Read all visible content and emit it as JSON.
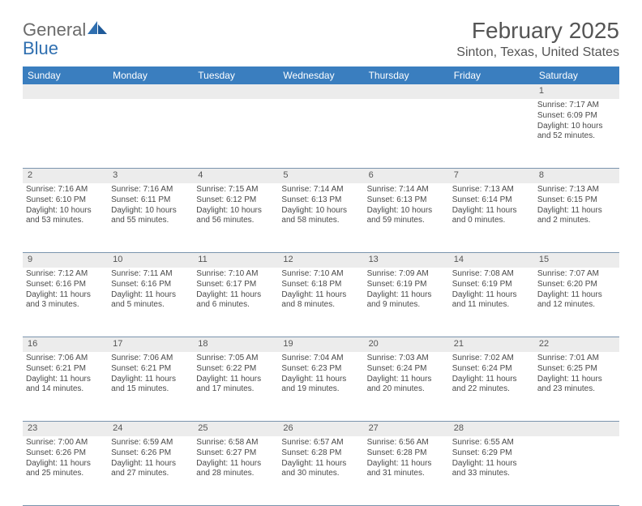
{
  "brand": {
    "word1": "General",
    "word2": "Blue"
  },
  "title": "February 2025",
  "location": "Sinton, Texas, United States",
  "colors": {
    "header_bg": "#3a7ebf",
    "header_text": "#ffffff",
    "daynum_bg": "#ececec",
    "rule": "#7a94ad",
    "text": "#4a4a4a"
  },
  "table": {
    "columns": [
      "Sunday",
      "Monday",
      "Tuesday",
      "Wednesday",
      "Thursday",
      "Friday",
      "Saturday"
    ],
    "weeks": [
      [
        null,
        null,
        null,
        null,
        null,
        null,
        {
          "n": "1",
          "sunrise": "Sunrise: 7:17 AM",
          "sunset": "Sunset: 6:09 PM",
          "daylight": "Daylight: 10 hours and 52 minutes."
        }
      ],
      [
        {
          "n": "2",
          "sunrise": "Sunrise: 7:16 AM",
          "sunset": "Sunset: 6:10 PM",
          "daylight": "Daylight: 10 hours and 53 minutes."
        },
        {
          "n": "3",
          "sunrise": "Sunrise: 7:16 AM",
          "sunset": "Sunset: 6:11 PM",
          "daylight": "Daylight: 10 hours and 55 minutes."
        },
        {
          "n": "4",
          "sunrise": "Sunrise: 7:15 AM",
          "sunset": "Sunset: 6:12 PM",
          "daylight": "Daylight: 10 hours and 56 minutes."
        },
        {
          "n": "5",
          "sunrise": "Sunrise: 7:14 AM",
          "sunset": "Sunset: 6:13 PM",
          "daylight": "Daylight: 10 hours and 58 minutes."
        },
        {
          "n": "6",
          "sunrise": "Sunrise: 7:14 AM",
          "sunset": "Sunset: 6:13 PM",
          "daylight": "Daylight: 10 hours and 59 minutes."
        },
        {
          "n": "7",
          "sunrise": "Sunrise: 7:13 AM",
          "sunset": "Sunset: 6:14 PM",
          "daylight": "Daylight: 11 hours and 0 minutes."
        },
        {
          "n": "8",
          "sunrise": "Sunrise: 7:13 AM",
          "sunset": "Sunset: 6:15 PM",
          "daylight": "Daylight: 11 hours and 2 minutes."
        }
      ],
      [
        {
          "n": "9",
          "sunrise": "Sunrise: 7:12 AM",
          "sunset": "Sunset: 6:16 PM",
          "daylight": "Daylight: 11 hours and 3 minutes."
        },
        {
          "n": "10",
          "sunrise": "Sunrise: 7:11 AM",
          "sunset": "Sunset: 6:16 PM",
          "daylight": "Daylight: 11 hours and 5 minutes."
        },
        {
          "n": "11",
          "sunrise": "Sunrise: 7:10 AM",
          "sunset": "Sunset: 6:17 PM",
          "daylight": "Daylight: 11 hours and 6 minutes."
        },
        {
          "n": "12",
          "sunrise": "Sunrise: 7:10 AM",
          "sunset": "Sunset: 6:18 PM",
          "daylight": "Daylight: 11 hours and 8 minutes."
        },
        {
          "n": "13",
          "sunrise": "Sunrise: 7:09 AM",
          "sunset": "Sunset: 6:19 PM",
          "daylight": "Daylight: 11 hours and 9 minutes."
        },
        {
          "n": "14",
          "sunrise": "Sunrise: 7:08 AM",
          "sunset": "Sunset: 6:19 PM",
          "daylight": "Daylight: 11 hours and 11 minutes."
        },
        {
          "n": "15",
          "sunrise": "Sunrise: 7:07 AM",
          "sunset": "Sunset: 6:20 PM",
          "daylight": "Daylight: 11 hours and 12 minutes."
        }
      ],
      [
        {
          "n": "16",
          "sunrise": "Sunrise: 7:06 AM",
          "sunset": "Sunset: 6:21 PM",
          "daylight": "Daylight: 11 hours and 14 minutes."
        },
        {
          "n": "17",
          "sunrise": "Sunrise: 7:06 AM",
          "sunset": "Sunset: 6:21 PM",
          "daylight": "Daylight: 11 hours and 15 minutes."
        },
        {
          "n": "18",
          "sunrise": "Sunrise: 7:05 AM",
          "sunset": "Sunset: 6:22 PM",
          "daylight": "Daylight: 11 hours and 17 minutes."
        },
        {
          "n": "19",
          "sunrise": "Sunrise: 7:04 AM",
          "sunset": "Sunset: 6:23 PM",
          "daylight": "Daylight: 11 hours and 19 minutes."
        },
        {
          "n": "20",
          "sunrise": "Sunrise: 7:03 AM",
          "sunset": "Sunset: 6:24 PM",
          "daylight": "Daylight: 11 hours and 20 minutes."
        },
        {
          "n": "21",
          "sunrise": "Sunrise: 7:02 AM",
          "sunset": "Sunset: 6:24 PM",
          "daylight": "Daylight: 11 hours and 22 minutes."
        },
        {
          "n": "22",
          "sunrise": "Sunrise: 7:01 AM",
          "sunset": "Sunset: 6:25 PM",
          "daylight": "Daylight: 11 hours and 23 minutes."
        }
      ],
      [
        {
          "n": "23",
          "sunrise": "Sunrise: 7:00 AM",
          "sunset": "Sunset: 6:26 PM",
          "daylight": "Daylight: 11 hours and 25 minutes."
        },
        {
          "n": "24",
          "sunrise": "Sunrise: 6:59 AM",
          "sunset": "Sunset: 6:26 PM",
          "daylight": "Daylight: 11 hours and 27 minutes."
        },
        {
          "n": "25",
          "sunrise": "Sunrise: 6:58 AM",
          "sunset": "Sunset: 6:27 PM",
          "daylight": "Daylight: 11 hours and 28 minutes."
        },
        {
          "n": "26",
          "sunrise": "Sunrise: 6:57 AM",
          "sunset": "Sunset: 6:28 PM",
          "daylight": "Daylight: 11 hours and 30 minutes."
        },
        {
          "n": "27",
          "sunrise": "Sunrise: 6:56 AM",
          "sunset": "Sunset: 6:28 PM",
          "daylight": "Daylight: 11 hours and 31 minutes."
        },
        {
          "n": "28",
          "sunrise": "Sunrise: 6:55 AM",
          "sunset": "Sunset: 6:29 PM",
          "daylight": "Daylight: 11 hours and 33 minutes."
        },
        null
      ]
    ]
  }
}
